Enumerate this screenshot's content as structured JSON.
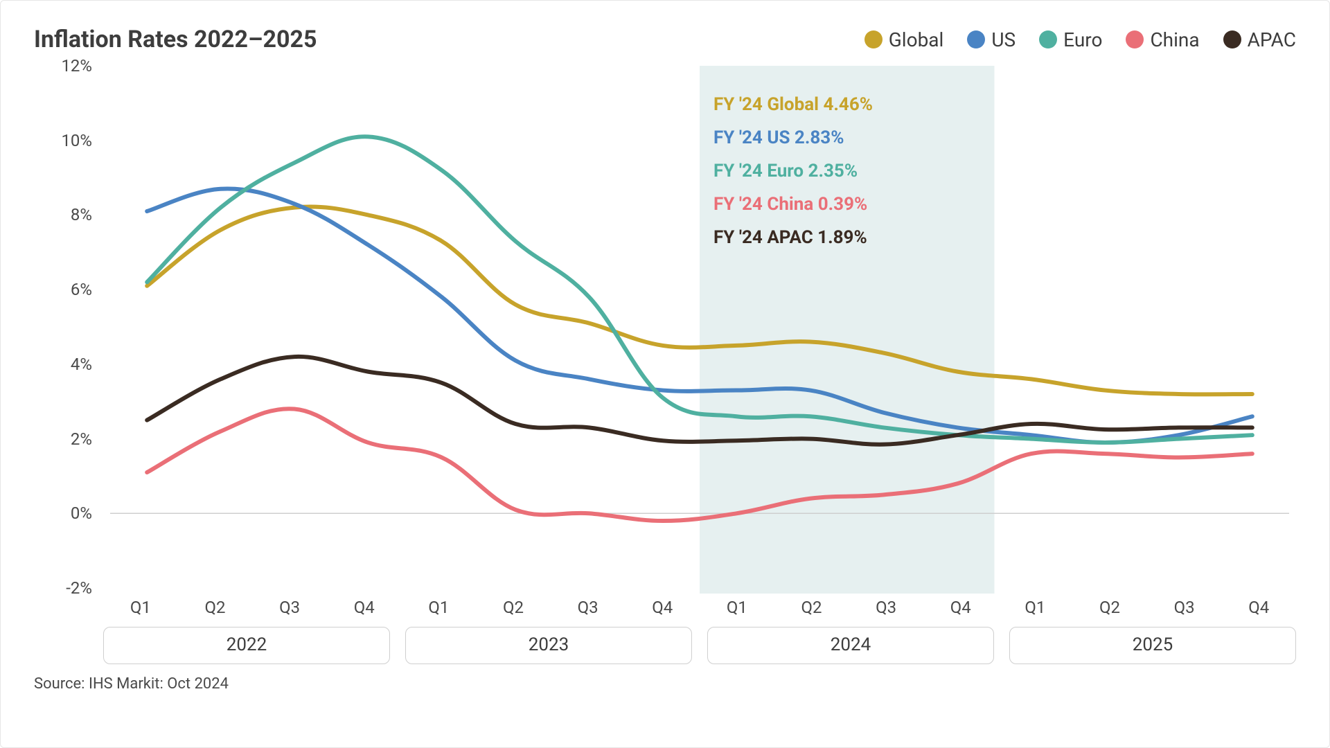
{
  "chart": {
    "type": "line",
    "title": "Inflation Rates 2022–2025",
    "source": "Source: IHS Markit: Oct 2024",
    "background_color": "#ffffff",
    "border_color": "#e6e6e6",
    "title_color": "#3d3d3d",
    "title_fontsize": 34,
    "axis_label_color": "#4a4a4a",
    "axis_label_fontsize": 24,
    "line_width": 6,
    "y": {
      "min": -2,
      "max": 12,
      "ticks": [
        -2,
        0,
        2,
        4,
        6,
        8,
        10,
        12
      ],
      "tick_labels": [
        "-2%",
        "0%",
        "2%",
        "4%",
        "6%",
        "8%",
        "10%",
        "12%"
      ],
      "zero_line_color": "#cfcfcf"
    },
    "x": {
      "quarters": [
        "Q1",
        "Q2",
        "Q3",
        "Q4",
        "Q1",
        "Q2",
        "Q3",
        "Q4",
        "Q1",
        "Q2",
        "Q3",
        "Q4",
        "Q1",
        "Q2",
        "Q3",
        "Q4"
      ],
      "years": [
        "2022",
        "2023",
        "2024",
        "2025"
      ],
      "year_box_border": "#cfcfcf"
    },
    "highlight": {
      "from_index": 8,
      "to_index": 12,
      "color": "#d1e3e3",
      "opacity": 0.55
    },
    "series": [
      {
        "name": "Global",
        "color": "#c7a32b",
        "values": [
          6.1,
          7.6,
          8.2,
          8.0,
          7.3,
          5.6,
          5.1,
          4.5,
          4.5,
          4.6,
          4.3,
          3.8,
          3.6,
          3.3,
          3.2,
          3.2
        ]
      },
      {
        "name": "US",
        "color": "#4a84c4",
        "values": [
          8.1,
          8.7,
          8.3,
          7.2,
          5.8,
          4.1,
          3.6,
          3.3,
          3.3,
          3.3,
          2.7,
          2.3,
          2.1,
          1.9,
          2.1,
          2.6
        ]
      },
      {
        "name": "Euro",
        "color": "#4fb0a0",
        "values": [
          6.2,
          8.2,
          9.4,
          10.1,
          9.2,
          7.3,
          5.8,
          3.1,
          2.6,
          2.6,
          2.3,
          2.1,
          2.0,
          1.9,
          2.0,
          2.1
        ]
      },
      {
        "name": "China",
        "color": "#ea6f77",
        "values": [
          1.1,
          2.2,
          2.8,
          1.9,
          1.5,
          0.1,
          0.0,
          -0.2,
          0.0,
          0.4,
          0.5,
          0.8,
          1.6,
          1.6,
          1.5,
          1.6
        ]
      },
      {
        "name": "APAC",
        "color": "#3a2b22",
        "values": [
          2.5,
          3.6,
          4.2,
          3.8,
          3.5,
          2.4,
          2.3,
          1.95,
          1.95,
          2.0,
          1.85,
          2.1,
          2.4,
          2.25,
          2.3,
          2.3
        ]
      }
    ],
    "annotations": [
      {
        "label": "FY '24 Global 4.46%",
        "color": "#c7a32b"
      },
      {
        "label": "FY '24 US 2.83%",
        "color": "#4a84c4"
      },
      {
        "label": "FY '24 Euro 2.35%",
        "color": "#4fb0a0"
      },
      {
        "label": "FY '24 China 0.39%",
        "color": "#ea6f77"
      },
      {
        "label": "FY '24 APAC 1.89%",
        "color": "#3a2b22"
      }
    ],
    "annotation_fontsize": 26,
    "legend": {
      "fontsize": 28,
      "swatch_size": 26
    }
  }
}
